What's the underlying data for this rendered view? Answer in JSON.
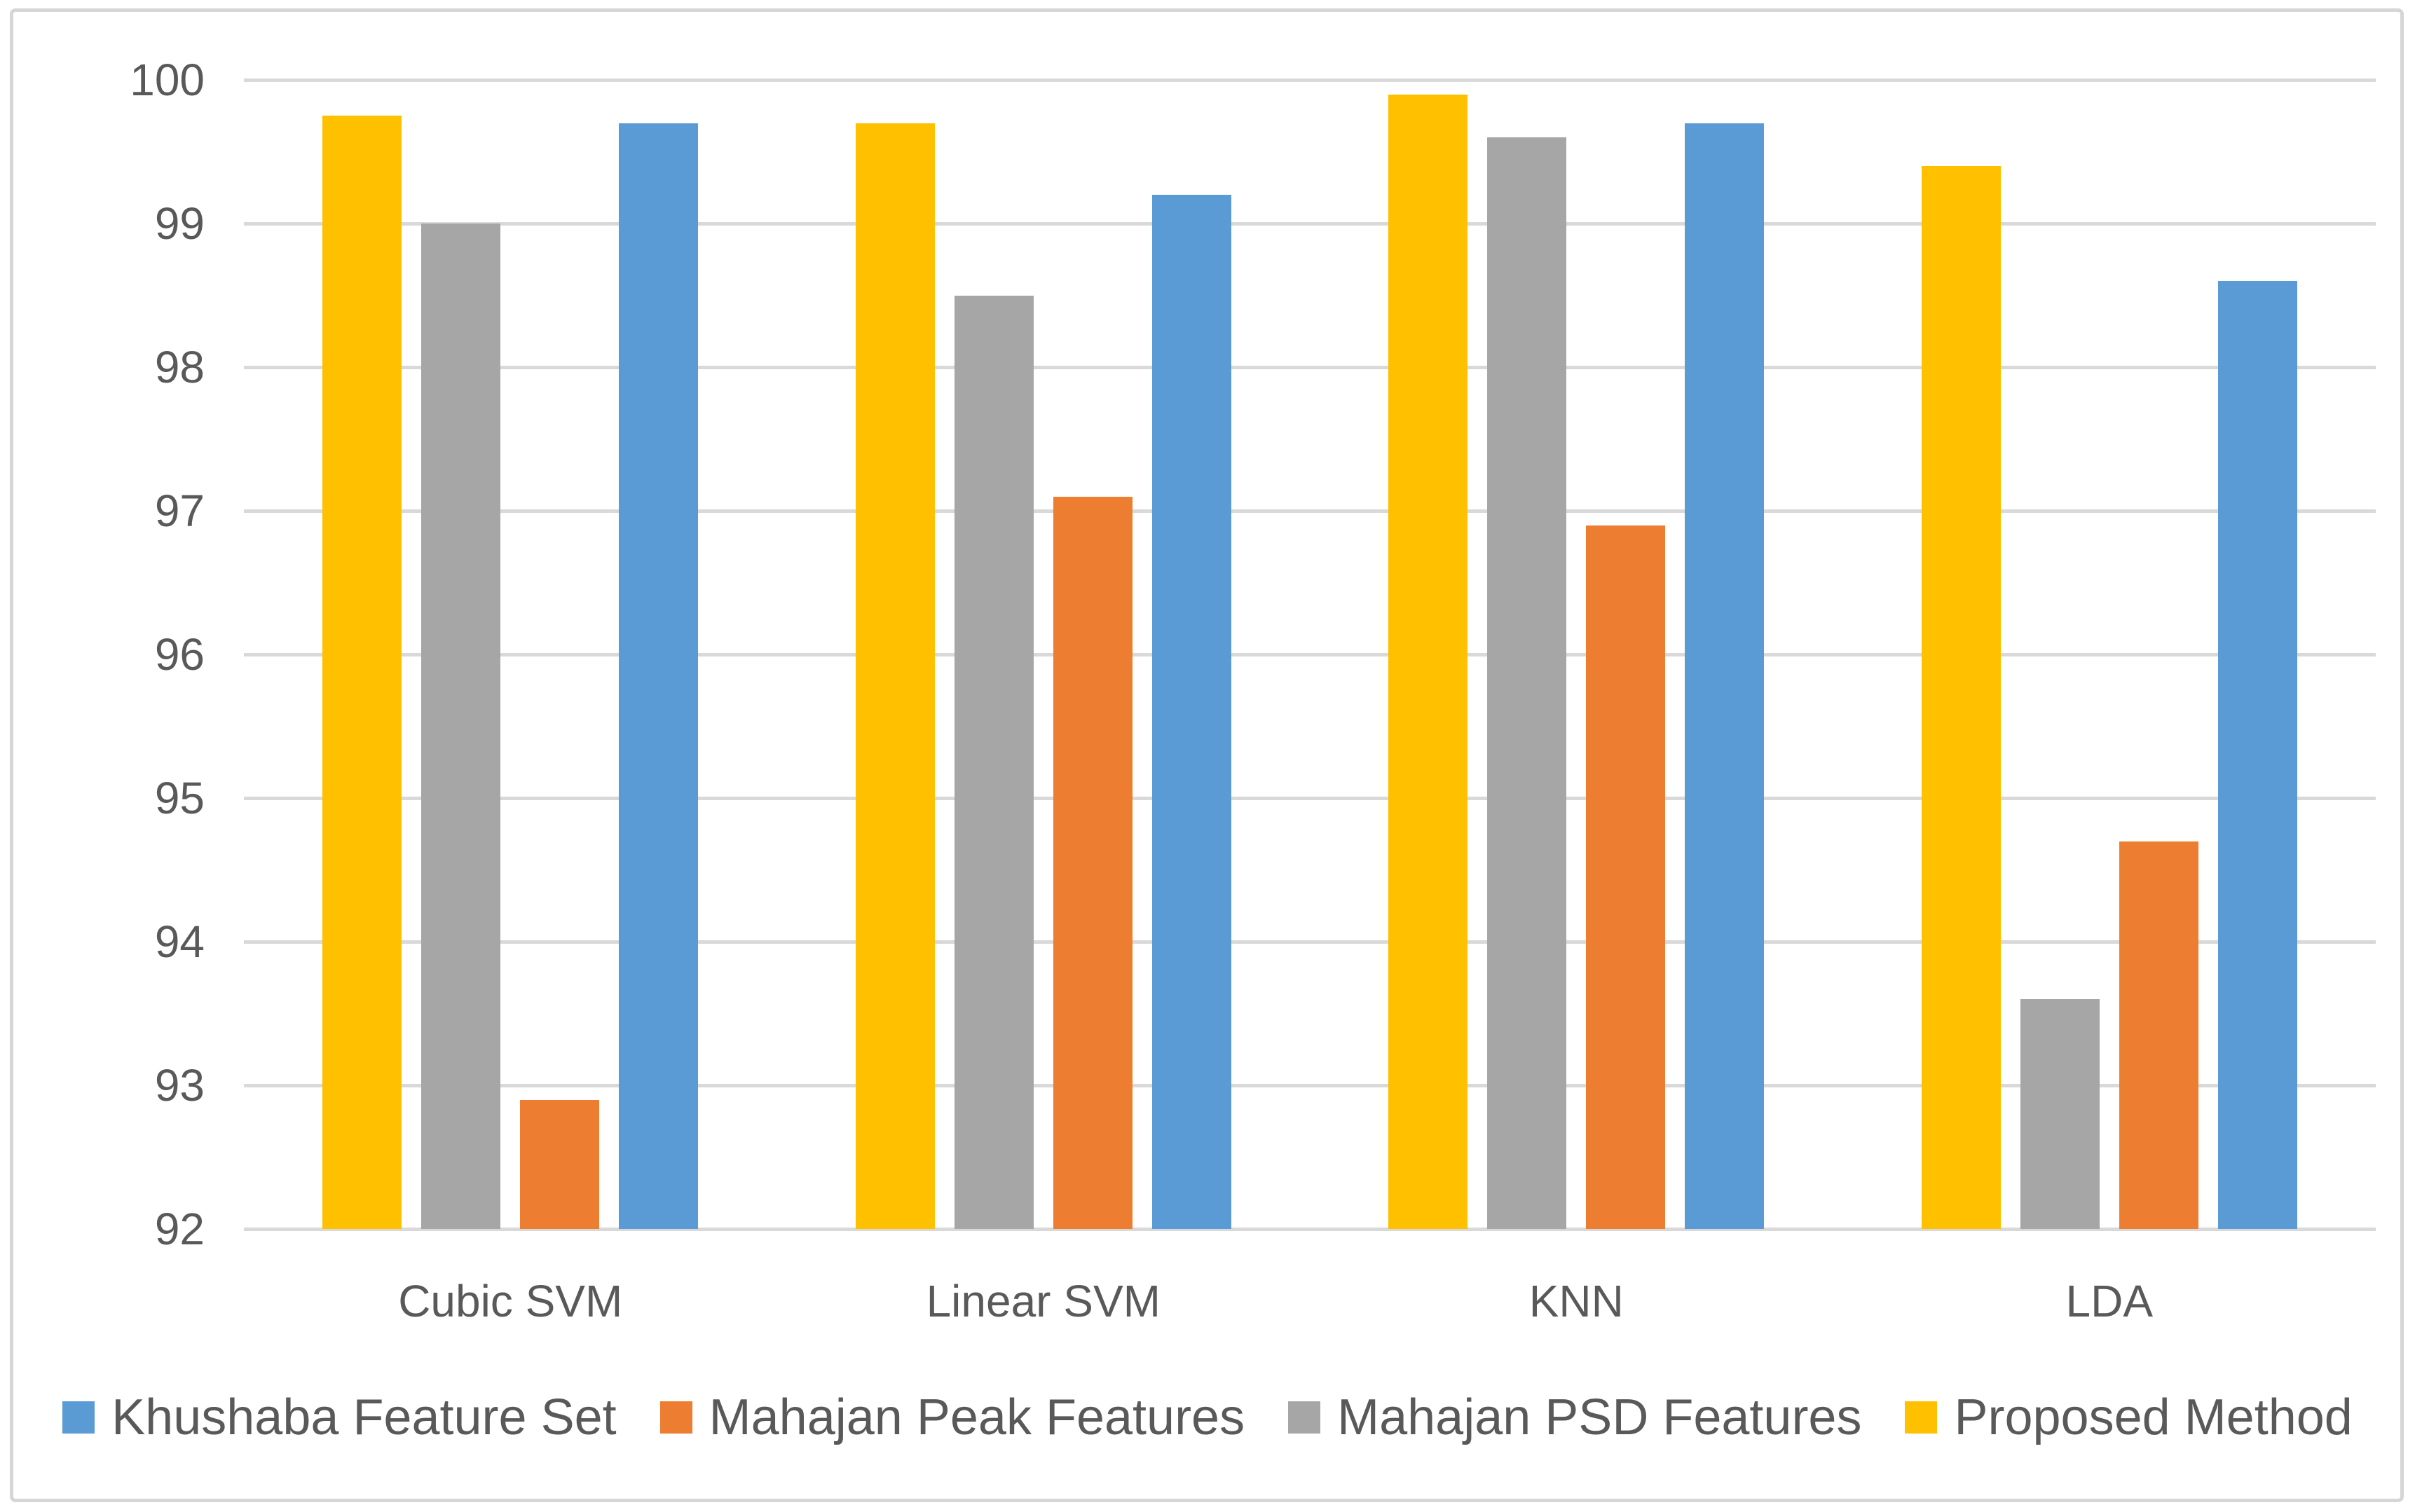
{
  "figure": {
    "background": "#FFFFFF",
    "border_color": "#D6D6D6",
    "text_color": "#595959",
    "gridline_color": "#D9D9D9"
  },
  "chart_data": {
    "type": "bar",
    "title": "",
    "xlabel": "",
    "ylabel": "",
    "categories": [
      "Cubic SVM",
      "Linear SVM",
      "KNN",
      "LDA"
    ],
    "series": [
      {
        "name": "Proposed Method",
        "color": "#FFC000",
        "values": [
          99.75,
          99.7,
          99.9,
          99.4
        ]
      },
      {
        "name": "Mahajan PSD Features",
        "color": "#A6A6A6",
        "values": [
          99.0,
          98.5,
          99.6,
          93.6
        ]
      },
      {
        "name": "Mahajan Peak Features",
        "color": "#ED7D31",
        "values": [
          92.9,
          97.1,
          96.9,
          94.7
        ]
      },
      {
        "name": "Khushaba Feature Set",
        "color": "#5B9BD5",
        "values": [
          99.7,
          99.2,
          99.7,
          98.6
        ]
      }
    ],
    "legend_order": [
      "Khushaba Feature Set",
      "Mahajan Peak Features",
      "Mahajan PSD Features",
      "Proposed Method"
    ],
    "legend_position": "bottom",
    "ylim": [
      92,
      100
    ],
    "yticks": [
      100,
      99,
      98,
      97,
      96,
      95,
      94,
      93,
      92
    ],
    "grid": true
  }
}
